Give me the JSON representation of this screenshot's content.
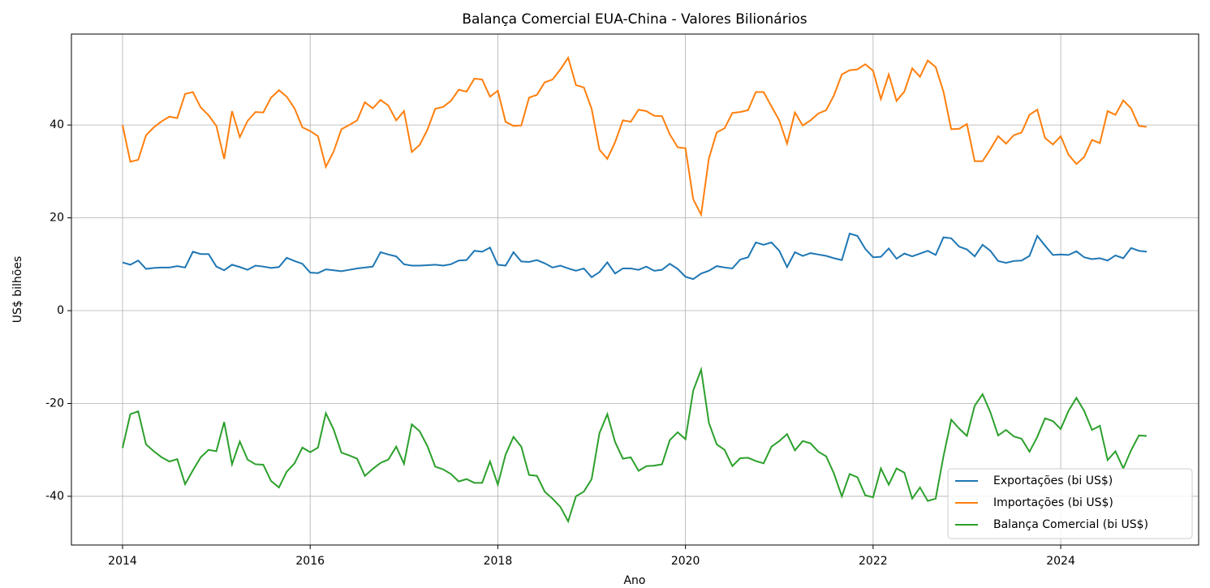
{
  "chart_data": {
    "type": "line",
    "title": "Balança Comercial EUA-China - Valores Bilionários",
    "xlabel": "Ano",
    "ylabel": "US$ bilhões",
    "x": [
      2014,
      2014.083,
      2014.167,
      2014.25,
      2014.333,
      2014.417,
      2014.5,
      2014.583,
      2014.667,
      2014.75,
      2014.833,
      2014.917,
      2015,
      2015.083,
      2015.167,
      2015.25,
      2015.333,
      2015.417,
      2015.5,
      2015.583,
      2015.667,
      2015.75,
      2015.833,
      2015.917,
      2016,
      2016.083,
      2016.167,
      2016.25,
      2016.333,
      2016.417,
      2016.5,
      2016.583,
      2016.667,
      2016.75,
      2016.833,
      2016.917,
      2017,
      2017.083,
      2017.167,
      2017.25,
      2017.333,
      2017.417,
      2017.5,
      2017.583,
      2017.667,
      2017.75,
      2017.833,
      2017.917,
      2018,
      2018.083,
      2018.167,
      2018.25,
      2018.333,
      2018.417,
      2018.5,
      2018.583,
      2018.667,
      2018.75,
      2018.833,
      2018.917,
      2019,
      2019.083,
      2019.167,
      2019.25,
      2019.333,
      2019.417,
      2019.5,
      2019.583,
      2019.667,
      2019.75,
      2019.833,
      2019.917,
      2020,
      2020.083,
      2020.167,
      2020.25,
      2020.333,
      2020.417,
      2020.5,
      2020.583,
      2020.667,
      2020.75,
      2020.833,
      2020.917,
      2021,
      2021.083,
      2021.167,
      2021.25,
      2021.333,
      2021.417,
      2021.5,
      2021.583,
      2021.667,
      2021.75,
      2021.833,
      2021.917,
      2022,
      2022.083,
      2022.167,
      2022.25,
      2022.333,
      2022.417,
      2022.5,
      2022.583,
      2022.667,
      2022.75,
      2022.833,
      2022.917,
      2023,
      2023.083,
      2023.167,
      2023.25,
      2023.333,
      2023.417,
      2023.5,
      2023.583,
      2023.667,
      2023.75,
      2023.833,
      2023.917,
      2024,
      2024.083,
      2024.167,
      2024.25,
      2024.333,
      2024.417,
      2024.5,
      2024.583,
      2024.667,
      2024.75,
      2024.833,
      2024.917
    ],
    "series": [
      {
        "name": "Exportações (bi US$)",
        "color": "#1f77b4",
        "values": [
          10.4,
          9.9,
          10.8,
          9.0,
          9.2,
          9.3,
          9.3,
          9.6,
          9.3,
          12.7,
          12.2,
          12.2,
          9.5,
          8.7,
          9.9,
          9.4,
          8.8,
          9.7,
          9.5,
          9.2,
          9.4,
          11.4,
          10.7,
          10.1,
          8.2,
          8.1,
          8.9,
          8.7,
          8.5,
          8.8,
          9.1,
          9.3,
          9.5,
          12.6,
          12.1,
          11.7,
          10.0,
          9.7,
          9.7,
          9.8,
          9.9,
          9.7,
          10.0,
          10.8,
          10.9,
          12.9,
          12.7,
          13.6,
          9.9,
          9.7,
          12.6,
          10.6,
          10.5,
          10.9,
          10.2,
          9.3,
          9.7,
          9.1,
          8.6,
          9.1,
          7.2,
          8.3,
          10.4,
          8.0,
          9.1,
          9.1,
          8.8,
          9.5,
          8.6,
          8.8,
          10.1,
          9.0,
          7.3,
          6.8,
          8.0,
          8.6,
          9.6,
          9.3,
          9.1,
          11.0,
          11.5,
          14.7,
          14.2,
          14.7,
          12.9,
          9.4,
          12.6,
          11.8,
          12.4,
          12.1,
          11.8,
          11.3,
          10.9,
          16.6,
          16.1,
          13.3,
          11.5,
          11.6,
          13.4,
          11.2,
          12.3,
          11.7,
          12.3,
          12.9,
          12.0,
          15.8,
          15.6,
          13.8,
          13.2,
          11.7,
          14.2,
          12.9,
          10.7,
          10.3,
          10.7,
          10.8,
          11.8,
          16.1,
          14.0,
          12.0,
          12.1,
          12.0,
          12.8,
          11.5,
          11.1,
          11.3,
          10.8,
          11.9,
          11.3,
          13.5,
          12.9,
          12.7
        ]
      },
      {
        "name": "Importações (bi US$)",
        "color": "#ff7f0e",
        "values": [
          40.0,
          32.1,
          32.5,
          37.8,
          39.5,
          40.8,
          41.8,
          41.5,
          46.7,
          47.1,
          43.8,
          42.1,
          39.8,
          32.7,
          43.0,
          37.4,
          40.9,
          42.8,
          42.7,
          45.9,
          47.5,
          46.1,
          43.6,
          39.5,
          38.7,
          37.6,
          31.0,
          34.3,
          39.1,
          40.0,
          41.0,
          44.9,
          43.6,
          45.4,
          44.2,
          41.0,
          43.0,
          34.2,
          35.7,
          39.0,
          43.5,
          43.9,
          45.2,
          47.6,
          47.2,
          50.0,
          49.8,
          46.1,
          47.4,
          40.7,
          39.8,
          39.9,
          45.9,
          46.5,
          49.2,
          49.8,
          52.0,
          54.5,
          48.6,
          48.1,
          43.5,
          34.7,
          32.7,
          36.3,
          41.0,
          40.7,
          43.3,
          43.0,
          42.0,
          41.9,
          38.0,
          35.2,
          35.0,
          24.0,
          20.7,
          32.8,
          38.4,
          39.3,
          42.6,
          42.8,
          43.2,
          47.1,
          47.1,
          44.0,
          41.0,
          36.0,
          42.7,
          39.9,
          41.0,
          42.5,
          43.2,
          46.4,
          50.9,
          51.8,
          52.0,
          53.1,
          51.7,
          45.6,
          50.9,
          45.2,
          47.2,
          52.2,
          50.4,
          53.9,
          52.5,
          47.2,
          39.1,
          39.2,
          40.2,
          32.2,
          32.2,
          34.8,
          37.6,
          36.0,
          37.8,
          38.4,
          42.2,
          43.3,
          37.2,
          35.8,
          37.6,
          33.6,
          31.6,
          33.1,
          36.8,
          36.1,
          43.0,
          42.2,
          45.3,
          43.6,
          39.8,
          39.6
        ]
      },
      {
        "name": "Balança Comercial (bi US$)",
        "color": "#2ca02c",
        "values": [
          -29.6,
          -22.3,
          -21.7,
          -28.8,
          -30.3,
          -31.6,
          -32.5,
          -32.0,
          -37.4,
          -34.4,
          -31.6,
          -30.0,
          -30.3,
          -24.0,
          -33.1,
          -28.2,
          -32.1,
          -33.1,
          -33.2,
          -36.7,
          -38.1,
          -34.7,
          -32.9,
          -29.5,
          -30.5,
          -29.5,
          -22.1,
          -25.6,
          -30.6,
          -31.2,
          -31.9,
          -35.6,
          -34.1,
          -32.8,
          -32.1,
          -29.3,
          -33.0,
          -24.5,
          -26.0,
          -29.2,
          -33.6,
          -34.2,
          -35.2,
          -36.8,
          -36.3,
          -37.1,
          -37.1,
          -32.5,
          -37.5,
          -31.0,
          -27.2,
          -29.3,
          -35.4,
          -35.6,
          -39.0,
          -40.5,
          -42.3,
          -45.4,
          -40.0,
          -39.0,
          -36.3,
          -26.4,
          -22.3,
          -28.3,
          -31.9,
          -31.6,
          -34.5,
          -33.5,
          -33.4,
          -33.1,
          -27.9,
          -26.2,
          -27.7,
          -17.2,
          -12.7,
          -24.2,
          -28.8,
          -30.0,
          -33.5,
          -31.8,
          -31.7,
          -32.4,
          -32.9,
          -29.3,
          -28.1,
          -26.6,
          -30.1,
          -28.1,
          -28.6,
          -30.4,
          -31.4,
          -35.1,
          -40.0,
          -35.2,
          -35.9,
          -39.8,
          -40.2,
          -34.0,
          -37.5,
          -34.0,
          -34.9,
          -40.5,
          -38.1,
          -41.0,
          -40.5,
          -31.4,
          -23.5,
          -25.4,
          -27.0,
          -20.5,
          -18.0,
          -21.9,
          -26.9,
          -25.7,
          -27.1,
          -27.6,
          -30.4,
          -27.2,
          -23.2,
          -23.8,
          -25.5,
          -21.6,
          -18.8,
          -21.6,
          -25.7,
          -24.8,
          -32.2,
          -30.3,
          -34.0,
          -30.1,
          -26.9,
          -27.0
        ]
      }
    ],
    "xlim": [
      2013.455,
      2025.47
    ],
    "xticks": [
      2014,
      2016,
      2018,
      2020,
      2022,
      2024
    ],
    "ylim": [
      -50.5,
      59.6
    ],
    "yticks": [
      -40,
      -20,
      0,
      20,
      40
    ],
    "grid": true,
    "legend": "lower right"
  }
}
